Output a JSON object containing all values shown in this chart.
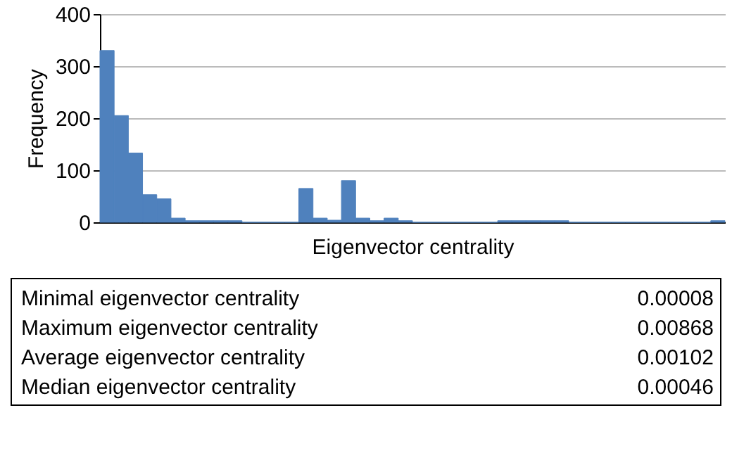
{
  "chart_data": {
    "type": "bar",
    "xlabel": "Eigenvector centrality",
    "ylabel": "Frequency",
    "categories": [
      null,
      null,
      null,
      null,
      null,
      null,
      null,
      null,
      null,
      null,
      null,
      null,
      null,
      null,
      null,
      null,
      null,
      null,
      null,
      null,
      null,
      null,
      null,
      null,
      null,
      null,
      null,
      null,
      null,
      null,
      null,
      null,
      null,
      null,
      null,
      null,
      null,
      null,
      null,
      null,
      null,
      null,
      null,
      null
    ],
    "values": [
      330,
      205,
      133,
      53,
      45,
      8,
      3,
      3,
      3,
      3,
      0,
      0,
      0,
      0,
      65,
      8,
      4,
      80,
      8,
      3,
      8,
      3,
      0,
      0,
      0,
      0,
      0,
      0,
      3,
      3,
      3,
      3,
      3,
      0,
      0,
      0,
      0,
      0,
      0,
      0,
      0,
      0,
      0,
      3
    ],
    "color": "#4f81bd",
    "ylim": [
      0,
      400
    ],
    "yticks": [
      0,
      100,
      200,
      300,
      400
    ],
    "grid": "y",
    "tick_labels": "y",
    "annotations": [
      "Minimal eigenvector centrality",
      "0.00008",
      "Maximum eigenvector centrality",
      "0.00868",
      "Average eigenvector centrality",
      "0.00102",
      "Median eigenvector centrality",
      "0.00046"
    ]
  }
}
